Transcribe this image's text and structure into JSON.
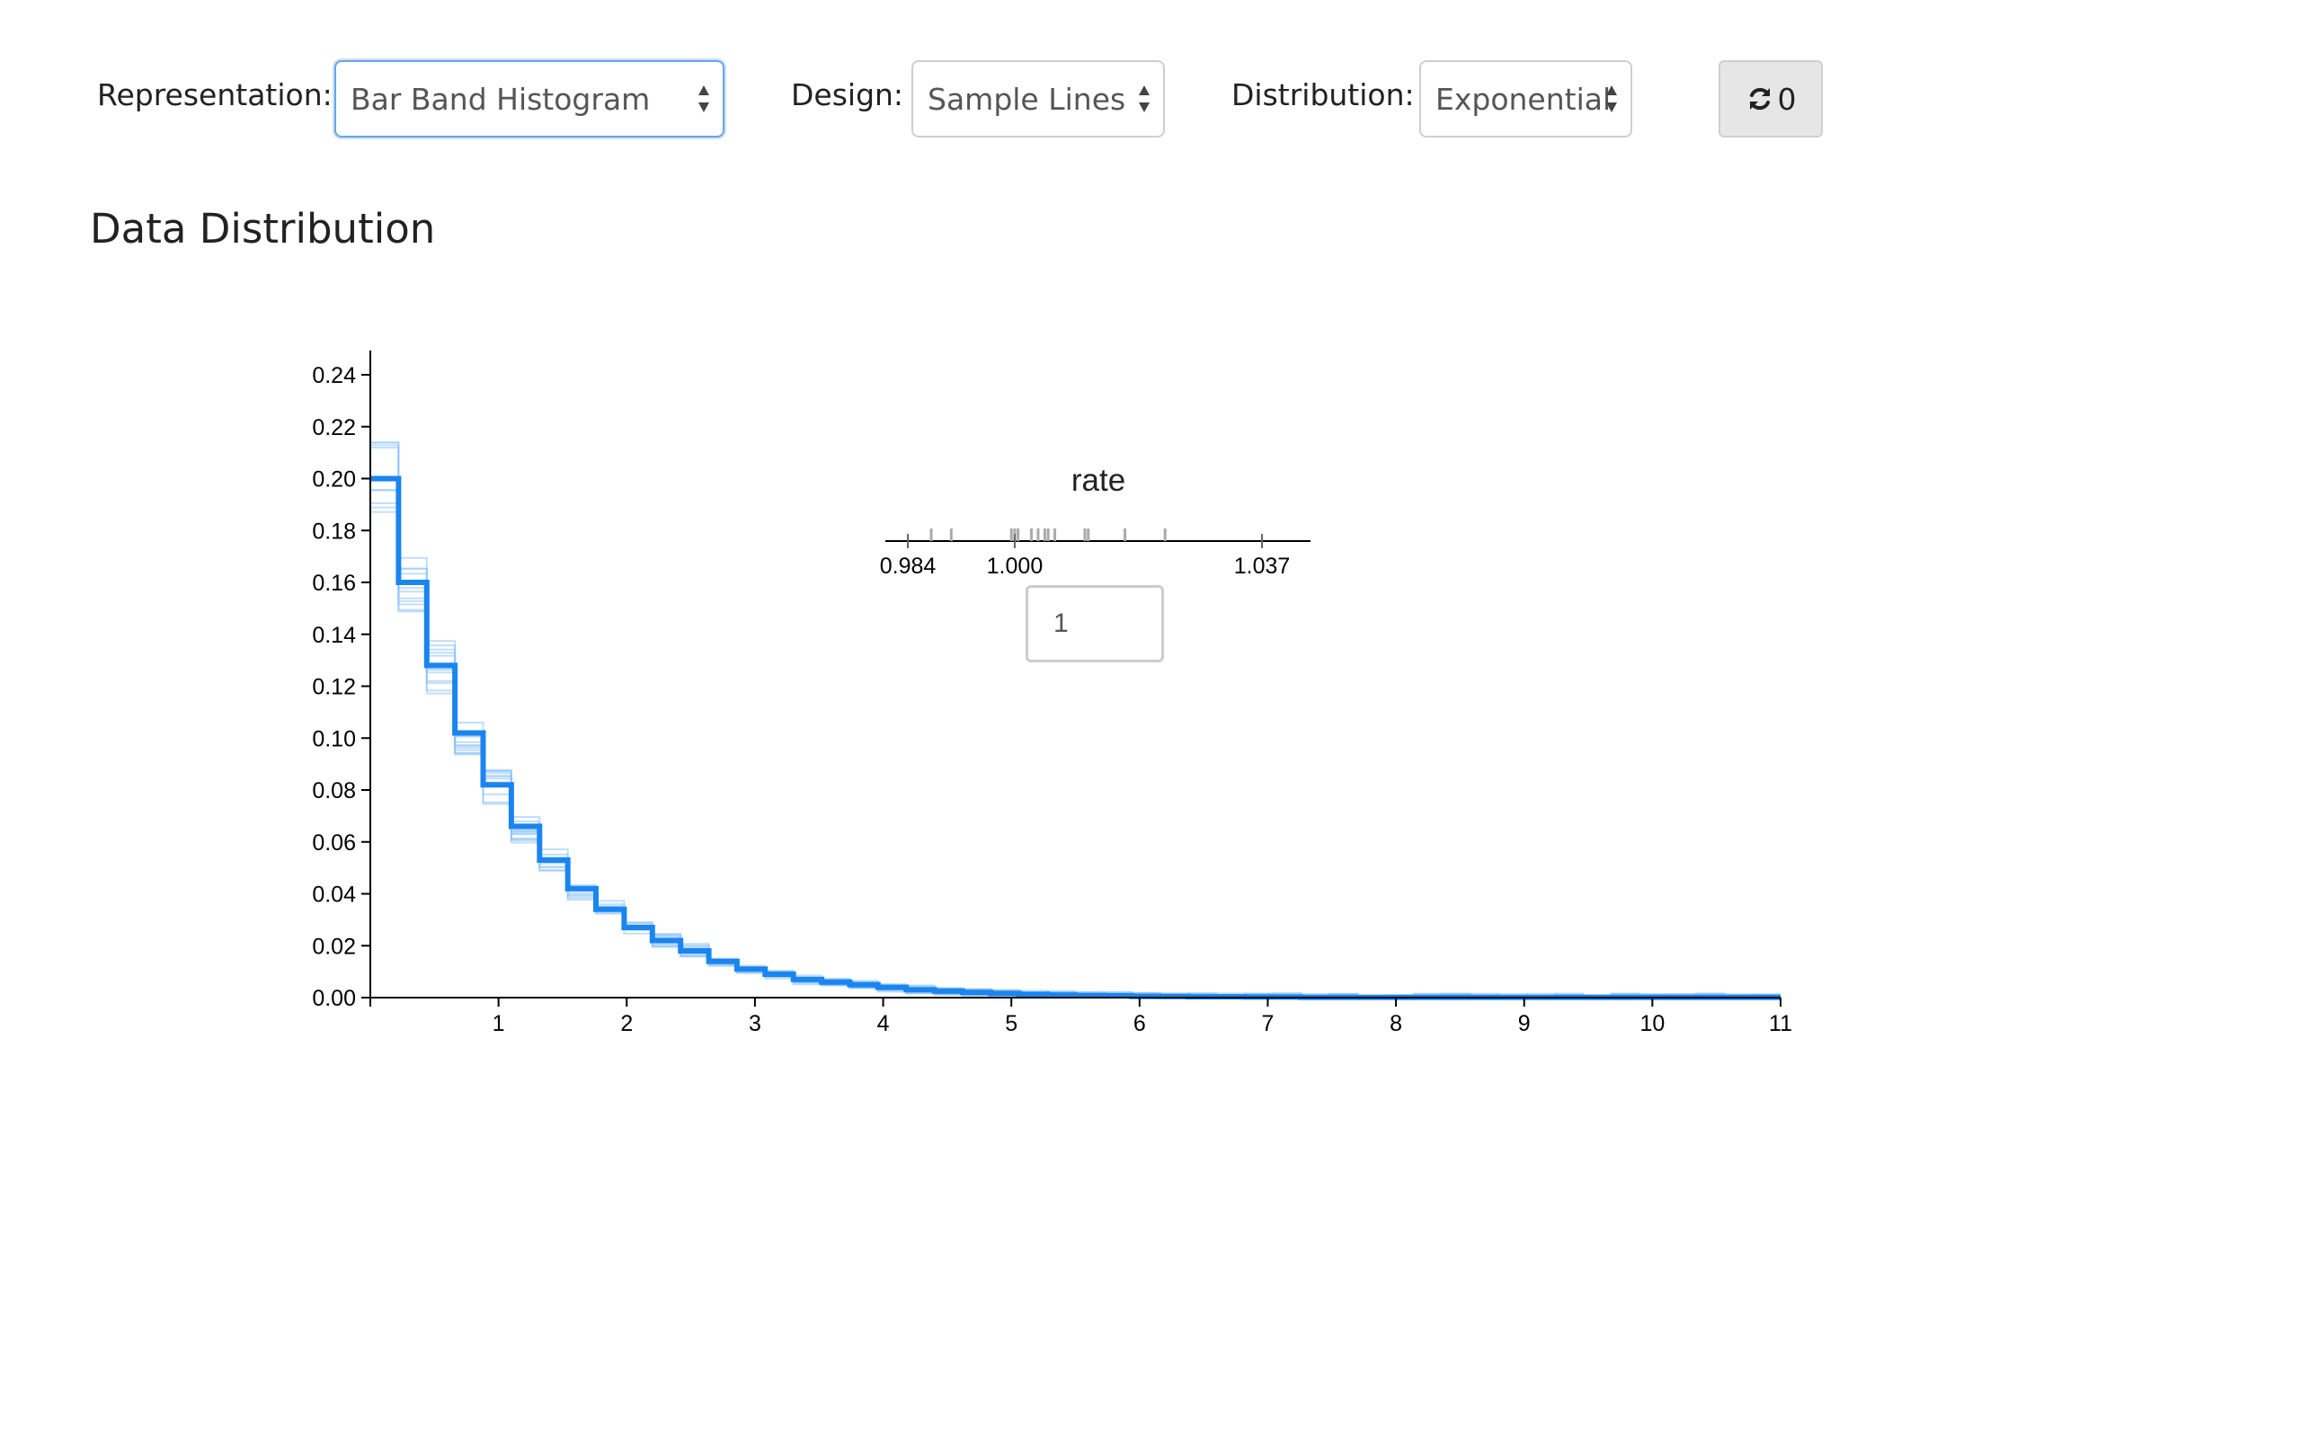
{
  "toolbar": {
    "representation": {
      "label": "Representation:",
      "value": "Bar Band Histogram"
    },
    "design": {
      "label": "Design:",
      "value": "Sample Lines"
    },
    "distribution": {
      "label": "Distribution:",
      "value": "Exponential"
    },
    "refresh": {
      "icon": "refresh-icon",
      "count": "0"
    }
  },
  "section_title": "Data Distribution",
  "colors": {
    "main_line": "#1a85f0",
    "sample_lines": "#8ec3f5",
    "axis": "#000000",
    "param_ticks": "#aaaaaa"
  },
  "chart_data": {
    "type": "line",
    "subtype": "step-histogram",
    "title": "",
    "xlabel": "",
    "ylabel": "",
    "xlim": [
      0,
      11
    ],
    "ylim": [
      0,
      0.24
    ],
    "x_ticks": [
      "1",
      "2",
      "3",
      "4",
      "5",
      "6",
      "7",
      "8",
      "9",
      "10",
      "11"
    ],
    "y_ticks": [
      "0.00",
      "0.02",
      "0.04",
      "0.06",
      "0.08",
      "0.10",
      "0.12",
      "0.14",
      "0.16",
      "0.18",
      "0.20",
      "0.22",
      "0.24"
    ],
    "bin_width": 0.22,
    "series": [
      {
        "values": [
          0.2,
          0.16,
          0.128,
          0.102,
          0.082,
          0.066,
          0.053,
          0.042,
          0.034,
          0.027,
          0.022,
          0.018,
          0.014,
          0.011,
          0.009,
          0.007,
          0.006,
          0.005,
          0.004,
          0.003,
          0.0025,
          0.002,
          0.0016,
          0.0013,
          0.001,
          0.0008,
          0.0007,
          0.0005,
          0.0004,
          0.0003,
          0.0003,
          0.0002,
          0.0002,
          0.0001,
          0.0001,
          0.0001,
          0.0001,
          0.0001,
          0.0001,
          0.0001,
          0.0001,
          0.0001,
          0.0001,
          0.0001,
          0.0001,
          0.0001,
          0.0001,
          0.0001,
          0.0001,
          0.0001
        ]
      }
    ],
    "sample_lines": {
      "count": 12,
      "description": "faint alternate step-histogram realizations around the main series"
    }
  },
  "parameter": {
    "name": "rate",
    "axis_ticks": [
      "0.984",
      "1.000",
      "1.037"
    ],
    "axis_range": [
      0.984,
      1.037
    ],
    "axis_tick_values": [
      0.984,
      1.0,
      1.037
    ],
    "samples": [
      0.9875,
      0.9905,
      0.9995,
      1.0,
      1.0005,
      1.0025,
      1.0035,
      1.0045,
      1.005,
      1.006,
      1.0105,
      1.011,
      1.0165,
      1.0225
    ],
    "input_value": "1"
  }
}
